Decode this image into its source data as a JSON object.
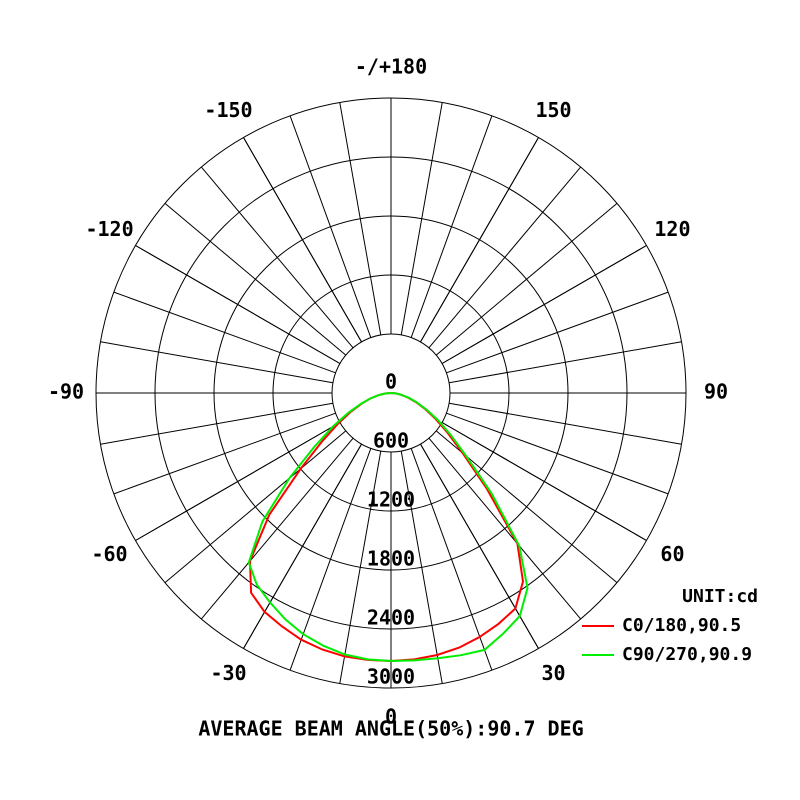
{
  "chart_data": {
    "type": "polar",
    "annotation": "AVERAGE BEAM ANGLE(50%):90.7 DEG",
    "legend_title": "UNIT:cd",
    "legend_position": "lower right",
    "rlim": [
      0,
      3000
    ],
    "rticks": [
      0,
      600,
      1200,
      1800,
      2400,
      3000
    ],
    "angle_ticks": [
      0,
      30,
      60,
      90,
      120,
      150,
      {
        "value": 180,
        "label": "-/+180"
      },
      -150,
      -120,
      -90,
      -60,
      -30
    ],
    "angles": [
      -90,
      -85,
      -80,
      -75,
      -70,
      -65,
      -60,
      -55,
      -50,
      -45,
      -40,
      -35,
      -30,
      -25,
      -20,
      -15,
      -10,
      -5,
      0,
      5,
      10,
      15,
      20,
      25,
      30,
      35,
      40,
      45,
      50,
      55,
      60,
      65,
      70,
      75,
      80,
      85,
      90
    ],
    "series": [
      {
        "name": "C0/180,90.5",
        "color": "#ff0000",
        "values": [
          0,
          60,
          130,
          220,
          320,
          450,
          620,
          850,
          1200,
          1750,
          2230,
          2480,
          2570,
          2620,
          2670,
          2700,
          2720,
          2725,
          2725,
          2720,
          2705,
          2680,
          2640,
          2590,
          2530,
          2340,
          2000,
          1380,
          950,
          700,
          520,
          380,
          270,
          180,
          110,
          50,
          0
        ]
      },
      {
        "name": "C90/270,90.9",
        "color": "#00ee00",
        "values": [
          0,
          60,
          130,
          220,
          330,
          480,
          680,
          950,
          1350,
          1850,
          2250,
          2380,
          2460,
          2540,
          2610,
          2660,
          2700,
          2720,
          2725,
          2730,
          2740,
          2760,
          2780,
          2700,
          2620,
          2420,
          2030,
          1450,
          1000,
          740,
          550,
          400,
          280,
          190,
          110,
          50,
          0
        ]
      }
    ]
  }
}
